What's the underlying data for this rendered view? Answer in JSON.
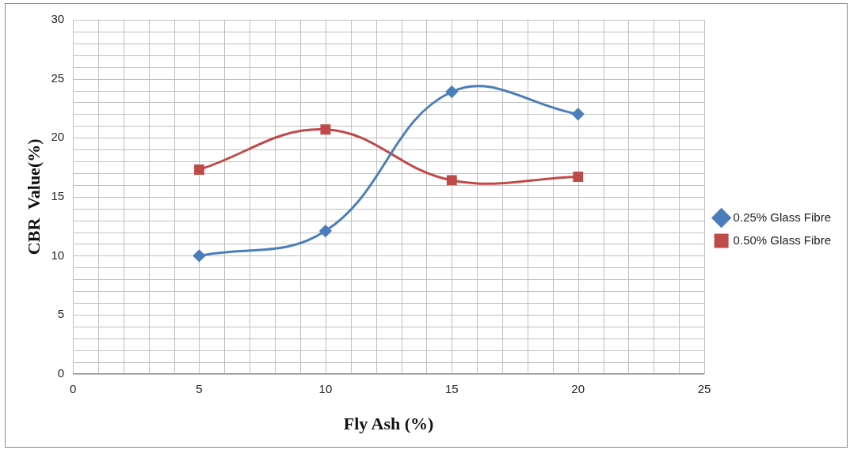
{
  "chart_data": {
    "type": "line",
    "xlabel": "Fly Ash (%)",
    "ylabel": "CBR  Value(%)",
    "x": [
      5,
      10,
      15,
      20
    ],
    "series": [
      {
        "name": "0.25% Glass Fibre",
        "color": "#4a7ebb",
        "values": [
          10,
          12.1,
          23.9,
          22
        ],
        "marker": "diamond"
      },
      {
        "name": "0.50% Glass Fibre",
        "color": "#be4b48",
        "values": [
          17.3,
          20.7,
          16.4,
          16.7
        ],
        "marker": "square"
      }
    ],
    "xlim": [
      0,
      25
    ],
    "xticks": [
      0,
      5,
      10,
      15,
      20,
      25
    ],
    "ylim": [
      0,
      30
    ],
    "yticks": [
      0,
      5,
      10,
      15,
      20,
      25,
      30
    ],
    "grid": true,
    "legend": "right"
  }
}
